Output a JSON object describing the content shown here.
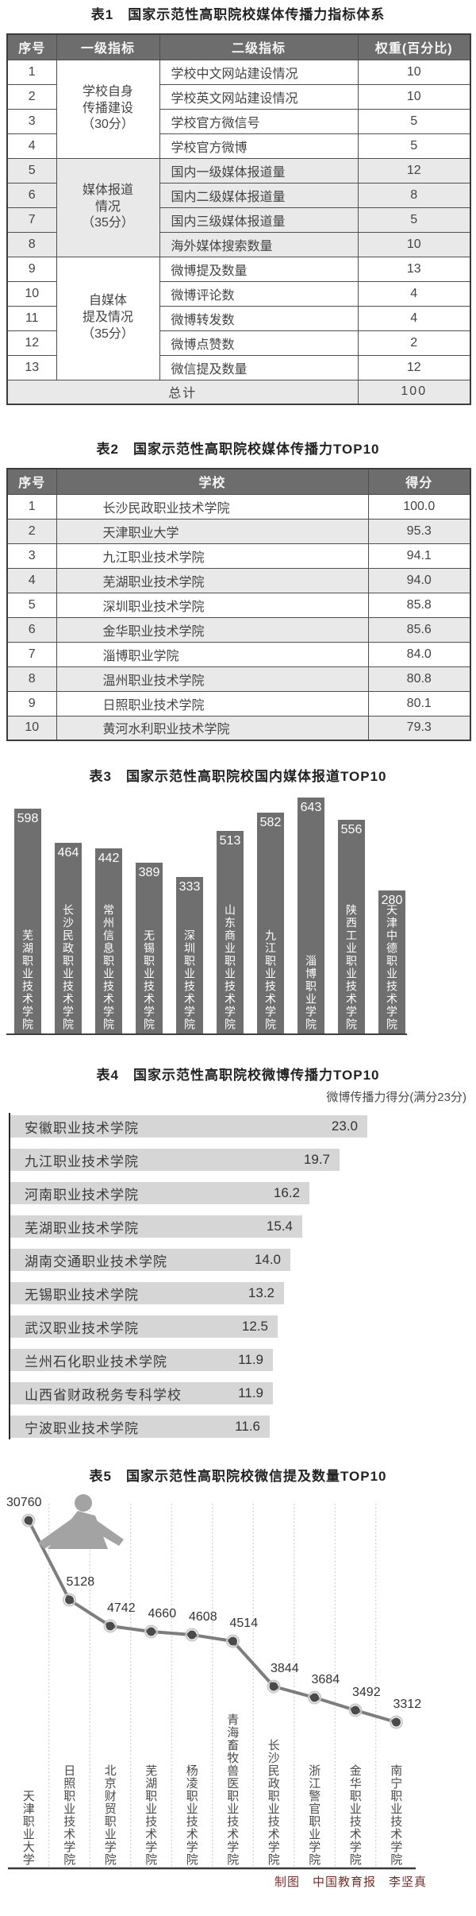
{
  "credit": "制图　中国教育报　李坚真",
  "colors": {
    "header_bg": "#6d6d6d",
    "header_text": "#f7f7f7",
    "row_shade": "#e9e9e9",
    "bar_dark": "#6f6f6f",
    "bar_light": "#d6d6d6",
    "line": "#7d7d7d",
    "credit_text": "#7b3028"
  },
  "chart_data": [
    {
      "type": "table",
      "title": "表1　国家示范性高职院校媒体传播力指标体系",
      "columns": [
        "序号",
        "一级指标",
        "二级指标",
        "权重(百分比)"
      ],
      "groups": [
        {
          "label": "学校自身\n传播建设\n（30分）",
          "shaded": false,
          "rows": [
            [
              "1",
              "学校中文网站建设情况",
              "10"
            ],
            [
              "2",
              "学校英文网站建设情况",
              "10"
            ],
            [
              "3",
              "学校官方微信号",
              "5"
            ],
            [
              "4",
              "学校官方微博",
              "5"
            ]
          ]
        },
        {
          "label": "媒体报道\n情况\n（35分）",
          "shaded": true,
          "rows": [
            [
              "5",
              "国内一级媒体报道量",
              "12"
            ],
            [
              "6",
              "国内二级媒体报道量",
              "8"
            ],
            [
              "7",
              "国内三级媒体报道量",
              "5"
            ],
            [
              "8",
              "海外媒体搜索数量",
              "10"
            ]
          ]
        },
        {
          "label": "自媒体\n提及情况\n（35分）",
          "shaded": false,
          "rows": [
            [
              "9",
              "微博提及数量",
              "13"
            ],
            [
              "10",
              "微博评论数",
              "4"
            ],
            [
              "11",
              "微博转发数",
              "4"
            ],
            [
              "12",
              "微博点赞数",
              "2"
            ],
            [
              "13",
              "微信提及数量",
              "12"
            ]
          ]
        }
      ],
      "total": {
        "label": "总计",
        "value": "100"
      }
    },
    {
      "type": "table",
      "title": "表2　国家示范性高职院校媒体传播力TOP10",
      "columns": [
        "序号",
        "学校",
        "得分"
      ],
      "rows": [
        [
          "1",
          "长沙民政职业技术学院",
          "100.0"
        ],
        [
          "2",
          "天津职业大学",
          "95.3"
        ],
        [
          "3",
          "九江职业技术学院",
          "94.1"
        ],
        [
          "4",
          "芜湖职业技术学院",
          "94.0"
        ],
        [
          "5",
          "深圳职业技术学院",
          "85.8"
        ],
        [
          "6",
          "金华职业技术学院",
          "85.6"
        ],
        [
          "7",
          "淄博职业学院",
          "84.0"
        ],
        [
          "8",
          "温州职业技术学院",
          "80.8"
        ],
        [
          "9",
          "日照职业技术学院",
          "80.1"
        ],
        [
          "10",
          "黄河水利职业技术学院",
          "79.3"
        ]
      ]
    },
    {
      "type": "bar",
      "title": "表3　国家示范性高职院校国内媒体报道TOP10",
      "categories": [
        "芜湖职业技术学院",
        "长沙民政职业技术学院",
        "常州信息职业技术学院",
        "无锡职业技术学院",
        "深圳职业技术学院",
        "山东商业职业技术学院",
        "九江职业技术学院",
        "淄博职业学院",
        "陕西工业职业技术学院",
        "天津中德职业技术学院"
      ],
      "values": [
        598,
        464,
        442,
        389,
        333,
        513,
        582,
        643,
        556,
        280
      ],
      "xlabel": "",
      "ylabel": "",
      "grid": false,
      "legend": "none"
    },
    {
      "type": "bar",
      "orientation": "horizontal",
      "title": "表4　国家示范性高职院校微博传播力TOP10",
      "subtitle": "微博传播力得分(满分23分)",
      "categories": [
        "安徽职业技术学院",
        "九江职业技术学院",
        "河南职业技术学院",
        "芜湖职业技术学院",
        "湖南交通职业技术学院",
        "无锡职业技术学院",
        "武汉职业技术学院",
        "兰州石化职业技术学院",
        "山西省财政税务专科学校",
        "宁波职业技术学院"
      ],
      "values": [
        23.0,
        19.7,
        16.2,
        15.4,
        14.0,
        13.2,
        12.5,
        11.9,
        11.9,
        11.6
      ],
      "value_labels": [
        "23.0",
        "19.7",
        "16.2",
        "15.4",
        "14.0",
        "13.2",
        "12.5",
        "11.9",
        "11.9",
        "11.6"
      ],
      "xlim": [
        0,
        23
      ],
      "grid": false,
      "legend": "none"
    },
    {
      "type": "line",
      "title": "表5　国家示范性高职院校微信提及数量TOP10",
      "categories": [
        "天津职业大学",
        "日照职业技术学院",
        "北京财贸职业学院",
        "芜湖职业技术学院",
        "杨凌职业技术学院",
        "青海畜牧兽医职业技术学院",
        "长沙民政职业技术学院",
        "浙江警官职业学院",
        "金华职业技术学院",
        "南宁职业技术学院"
      ],
      "values": [
        30760,
        5128,
        4742,
        4660,
        4608,
        4514,
        3844,
        3684,
        3492,
        3312
      ],
      "grid": "vertical-dotted",
      "legend": "none",
      "marker": "dot"
    }
  ]
}
